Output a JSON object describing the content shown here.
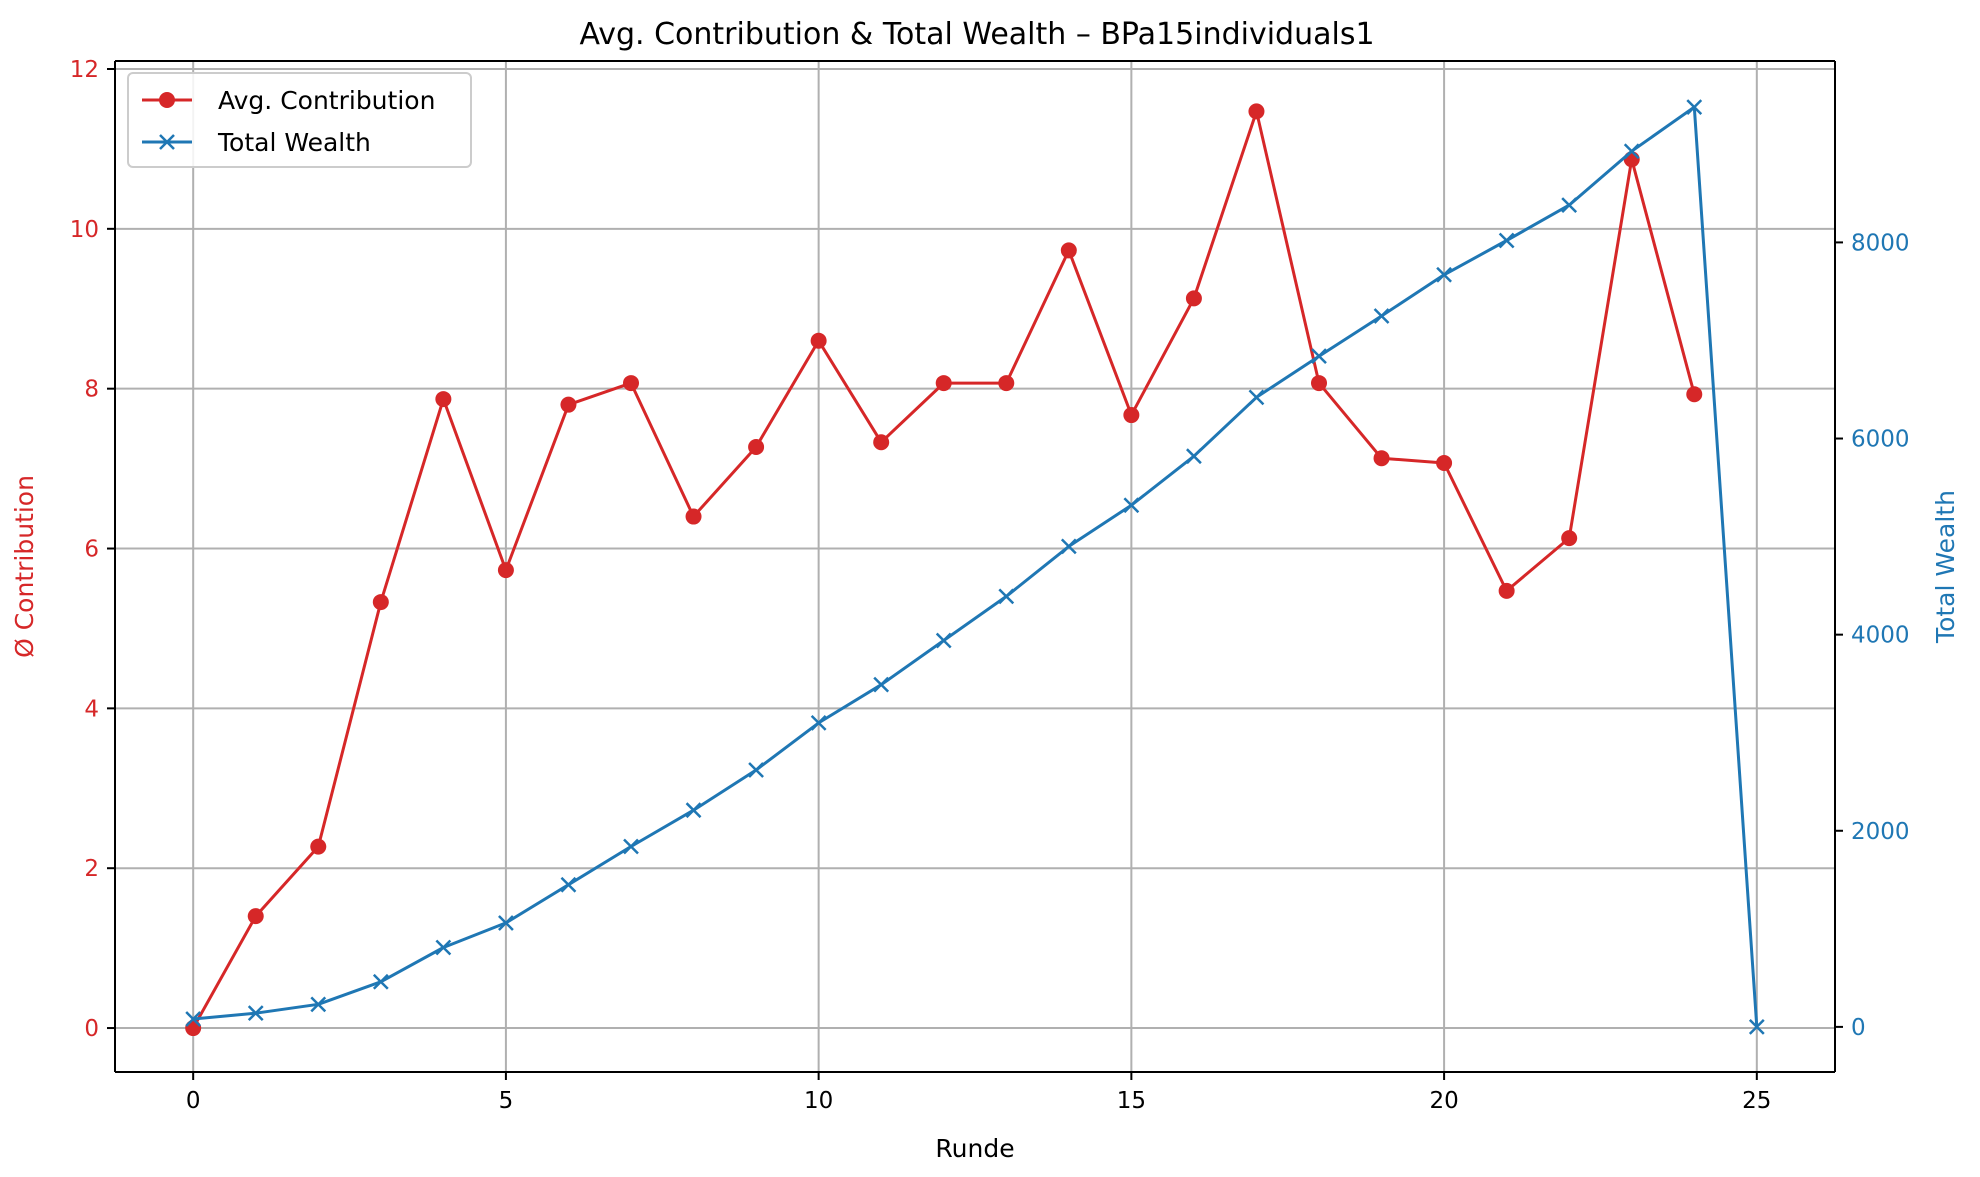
{
  "chart_data": {
    "type": "line",
    "title": "Avg. Contribution & Total Wealth – BPa15individuals1",
    "xlabel": "Runde",
    "ylabel_left": "Ø Contribution",
    "ylabel_right": "Total Wealth",
    "xlim": [
      -1.25,
      26.25
    ],
    "ylim_left": [
      -0.55,
      12.1
    ],
    "ylim_right": [
      -460,
      9850
    ],
    "x_ticks": [
      0,
      5,
      10,
      15,
      20,
      25
    ],
    "y_ticks_left": [
      0,
      2,
      4,
      6,
      8,
      10,
      12
    ],
    "y_ticks_right": [
      0,
      2000,
      4000,
      6000,
      8000
    ],
    "grid": true,
    "legend_position": "upper-left",
    "colors": {
      "contribution": "#d62728",
      "wealth": "#1f77b4",
      "grid": "#b0b0b0"
    },
    "series": [
      {
        "name": "Avg. Contribution",
        "axis": "left",
        "marker": "circle",
        "color": "#d62728",
        "x": [
          0,
          1,
          2,
          3,
          4,
          5,
          6,
          7,
          8,
          9,
          10,
          11,
          12,
          13,
          14,
          15,
          16,
          17,
          18,
          19,
          20,
          21,
          22,
          23,
          24
        ],
        "values": [
          0.0,
          1.4,
          2.27,
          5.33,
          7.87,
          5.73,
          7.8,
          8.07,
          6.4,
          7.27,
          8.6,
          7.33,
          8.07,
          8.07,
          9.73,
          7.67,
          9.13,
          11.47,
          8.07,
          7.13,
          7.07,
          5.47,
          6.13,
          10.87,
          7.93
        ]
      },
      {
        "name": "Total Wealth",
        "axis": "right",
        "marker": "x",
        "color": "#1f77b4",
        "x": [
          0,
          1,
          2,
          3,
          4,
          5,
          6,
          7,
          8,
          9,
          10,
          11,
          12,
          13,
          14,
          15,
          16,
          17,
          18,
          19,
          20,
          21,
          22,
          23,
          24,
          25
        ],
        "values": [
          80,
          140,
          230,
          460,
          810,
          1060,
          1450,
          1840,
          2210,
          2620,
          3100,
          3490,
          3940,
          4390,
          4900,
          5320,
          5820,
          6420,
          6840,
          7250,
          7670,
          8020,
          8380,
          8930,
          9380,
          0
        ]
      }
    ]
  }
}
